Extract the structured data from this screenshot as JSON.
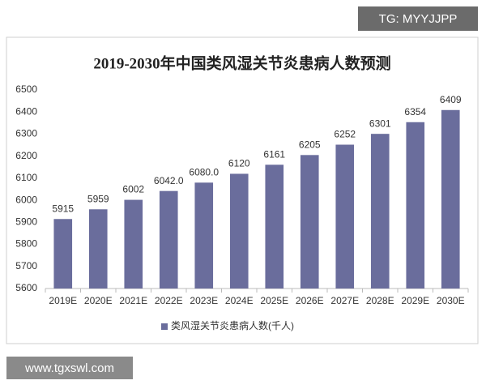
{
  "chart_data": {
    "type": "bar",
    "title": "2019-2030年中国类风湿关节炎患病人数预测",
    "categories": [
      "2019E",
      "2020E",
      "2021E",
      "2022E",
      "2023E",
      "2024E",
      "2025E",
      "2026E",
      "2027E",
      "2028E",
      "2029E",
      "2030E"
    ],
    "series": [
      {
        "name": "类风湿关节炎患病人数(千人)",
        "color": "#6a6d9c",
        "values": [
          5915,
          5959,
          6002,
          6042,
          6080,
          6120,
          6161,
          6205,
          6252,
          6301,
          6354,
          6409
        ],
        "value_labels": [
          "5915",
          "5959",
          "6002",
          "6042.0",
          "6080.0",
          "6120",
          "6161",
          "6205",
          "6252",
          "6301",
          "6354",
          "6409"
        ]
      }
    ],
    "ylim": [
      5600,
      6500
    ],
    "yticks": [
      5600,
      5700,
      5800,
      5900,
      6000,
      6100,
      6200,
      6300,
      6400,
      6500
    ],
    "grid": false,
    "legend": "bottom"
  },
  "watermarks": [
    "TG: MYYJJPP",
    "www.tgxswl.com"
  ]
}
